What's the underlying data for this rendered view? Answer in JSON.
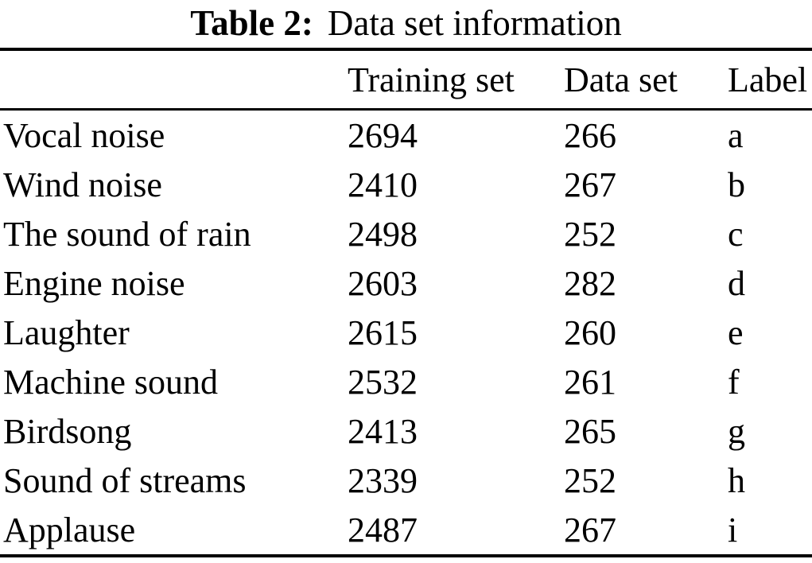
{
  "caption": {
    "label": "Table 2:",
    "title": "Data set information"
  },
  "table": {
    "columns": [
      "",
      "Training set",
      "Data set",
      "Label"
    ],
    "rows": [
      {
        "name": "Vocal noise",
        "training": "2694",
        "data": "266",
        "label": "a"
      },
      {
        "name": "Wind noise",
        "training": "2410",
        "data": "267",
        "label": "b"
      },
      {
        "name": "The sound of rain",
        "training": "2498",
        "data": "252",
        "label": "c"
      },
      {
        "name": "Engine noise",
        "training": "2603",
        "data": "282",
        "label": "d"
      },
      {
        "name": "Laughter",
        "training": "2615",
        "data": "260",
        "label": "e"
      },
      {
        "name": "Machine sound",
        "training": "2532",
        "data": "261",
        "label": "f"
      },
      {
        "name": "Birdsong",
        "training": "2413",
        "data": "265",
        "label": "g"
      },
      {
        "name": "Sound of streams",
        "training": "2339",
        "data": "252",
        "label": "h"
      },
      {
        "name": "Applause",
        "training": "2487",
        "data": "267",
        "label": "i"
      }
    ]
  },
  "colors": {
    "text": "#000000",
    "background": "#ffffff",
    "rule": "#000000"
  }
}
